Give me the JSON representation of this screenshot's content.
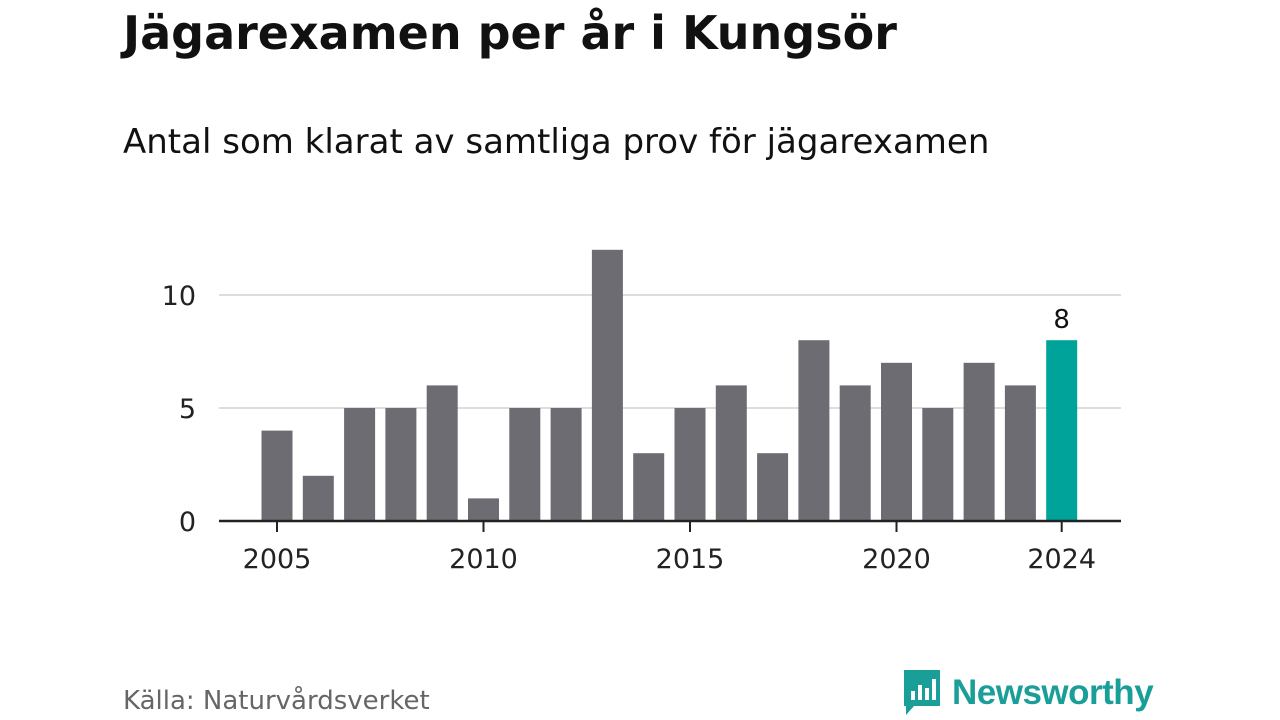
{
  "chart_data": {
    "type": "bar",
    "title": "Jägarexamen per år i Kungsör",
    "subtitle": "Antal som klarat av samtliga prov för jägarexamen",
    "categories": [
      2005,
      2006,
      2007,
      2008,
      2009,
      2010,
      2011,
      2012,
      2013,
      2014,
      2015,
      2016,
      2017,
      2018,
      2019,
      2020,
      2021,
      2022,
      2023,
      2024
    ],
    "values": [
      4,
      2,
      5,
      5,
      6,
      1,
      5,
      5,
      12,
      3,
      5,
      6,
      3,
      8,
      6,
      7,
      5,
      7,
      6,
      8
    ],
    "x_ticks": [
      2005,
      2010,
      2015,
      2020,
      2024
    ],
    "y_ticks": [
      0,
      5,
      10
    ],
    "ylim": [
      0,
      12
    ],
    "grid": true,
    "highlight": {
      "category": 2024,
      "label": "8"
    },
    "colors": {
      "bar": "#6d6c72",
      "highlight": "#00a39a",
      "grid": "#dddddd",
      "axis": "#222222"
    },
    "xlabel": "",
    "ylabel": ""
  },
  "source": "Källa: Naturvårdsverket",
  "brand": {
    "name": "Newsworthy",
    "icon": "newsworthy-logo-icon",
    "color": "#1a9e98"
  }
}
